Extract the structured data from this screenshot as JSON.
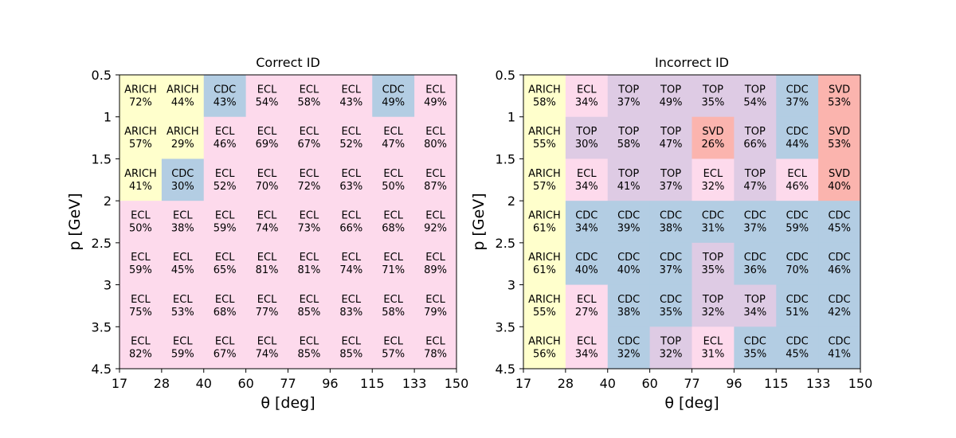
{
  "colors": {
    "ARICH": "#ffffcc",
    "CDC": "#b3cde3",
    "ECL": "#fddaec",
    "TOP": "#decbe4",
    "SVD": "#fbb4ae"
  },
  "chart_data": [
    {
      "type": "heatmap",
      "title": "Correct ID",
      "xlabel": "θ [deg]",
      "ylabel": "p [GeV]",
      "x_edges": [
        17,
        28,
        40,
        60,
        77,
        96,
        115,
        133,
        150
      ],
      "y_edges": [
        "0.5",
        "1",
        "1.5",
        "2",
        "2.5",
        "3",
        "3.5",
        "4.5"
      ],
      "detectors": [
        [
          "ARICH",
          "ARICH",
          "CDC",
          "ECL",
          "ECL",
          "ECL",
          "CDC",
          "ECL"
        ],
        [
          "ARICH",
          "ARICH",
          "ECL",
          "ECL",
          "ECL",
          "ECL",
          "ECL",
          "ECL"
        ],
        [
          "ARICH",
          "CDC",
          "ECL",
          "ECL",
          "ECL",
          "ECL",
          "ECL",
          "ECL"
        ],
        [
          "ECL",
          "ECL",
          "ECL",
          "ECL",
          "ECL",
          "ECL",
          "ECL",
          "ECL"
        ],
        [
          "ECL",
          "ECL",
          "ECL",
          "ECL",
          "ECL",
          "ECL",
          "ECL",
          "ECL"
        ],
        [
          "ECL",
          "ECL",
          "ECL",
          "ECL",
          "ECL",
          "ECL",
          "ECL",
          "ECL"
        ],
        [
          "ECL",
          "ECL",
          "ECL",
          "ECL",
          "ECL",
          "ECL",
          "ECL",
          "ECL"
        ]
      ],
      "percents": [
        [
          "72%",
          "44%",
          "43%",
          "54%",
          "58%",
          "43%",
          "49%",
          "49%"
        ],
        [
          "57%",
          "29%",
          "46%",
          "69%",
          "67%",
          "52%",
          "47%",
          "80%"
        ],
        [
          "41%",
          "30%",
          "52%",
          "70%",
          "72%",
          "63%",
          "50%",
          "87%"
        ],
        [
          "50%",
          "38%",
          "59%",
          "74%",
          "73%",
          "66%",
          "68%",
          "92%"
        ],
        [
          "59%",
          "45%",
          "65%",
          "81%",
          "81%",
          "74%",
          "71%",
          "89%"
        ],
        [
          "75%",
          "53%",
          "68%",
          "77%",
          "85%",
          "83%",
          "58%",
          "79%"
        ],
        [
          "82%",
          "59%",
          "67%",
          "74%",
          "85%",
          "85%",
          "57%",
          "78%"
        ]
      ]
    },
    {
      "type": "heatmap",
      "title": "Incorrect ID",
      "xlabel": "θ [deg]",
      "ylabel": "p [GeV]",
      "x_edges": [
        17,
        28,
        40,
        60,
        77,
        96,
        115,
        133,
        150
      ],
      "y_edges": [
        "0.5",
        "1",
        "1.5",
        "2",
        "2.5",
        "3",
        "3.5",
        "4.5"
      ],
      "detectors": [
        [
          "ARICH",
          "ECL",
          "TOP",
          "TOP",
          "TOP",
          "TOP",
          "CDC",
          "SVD"
        ],
        [
          "ARICH",
          "TOP",
          "TOP",
          "TOP",
          "SVD",
          "TOP",
          "CDC",
          "SVD"
        ],
        [
          "ARICH",
          "ECL",
          "TOP",
          "TOP",
          "ECL",
          "TOP",
          "ECL",
          "SVD"
        ],
        [
          "ARICH",
          "CDC",
          "CDC",
          "CDC",
          "CDC",
          "CDC",
          "CDC",
          "CDC"
        ],
        [
          "ARICH",
          "CDC",
          "CDC",
          "CDC",
          "TOP",
          "CDC",
          "CDC",
          "CDC"
        ],
        [
          "ARICH",
          "ECL",
          "CDC",
          "CDC",
          "TOP",
          "TOP",
          "CDC",
          "CDC"
        ],
        [
          "ARICH",
          "ECL",
          "CDC",
          "TOP",
          "ECL",
          "CDC",
          "CDC",
          "CDC"
        ]
      ],
      "percents": [
        [
          "58%",
          "34%",
          "37%",
          "49%",
          "35%",
          "54%",
          "37%",
          "53%"
        ],
        [
          "55%",
          "30%",
          "58%",
          "47%",
          "26%",
          "66%",
          "44%",
          "53%"
        ],
        [
          "57%",
          "34%",
          "41%",
          "37%",
          "32%",
          "47%",
          "46%",
          "40%"
        ],
        [
          "61%",
          "34%",
          "39%",
          "38%",
          "31%",
          "37%",
          "59%",
          "45%"
        ],
        [
          "61%",
          "40%",
          "40%",
          "37%",
          "35%",
          "36%",
          "70%",
          "46%"
        ],
        [
          "55%",
          "27%",
          "38%",
          "35%",
          "32%",
          "34%",
          "51%",
          "42%"
        ],
        [
          "56%",
          "34%",
          "32%",
          "32%",
          "31%",
          "35%",
          "45%",
          "41%"
        ]
      ]
    }
  ]
}
